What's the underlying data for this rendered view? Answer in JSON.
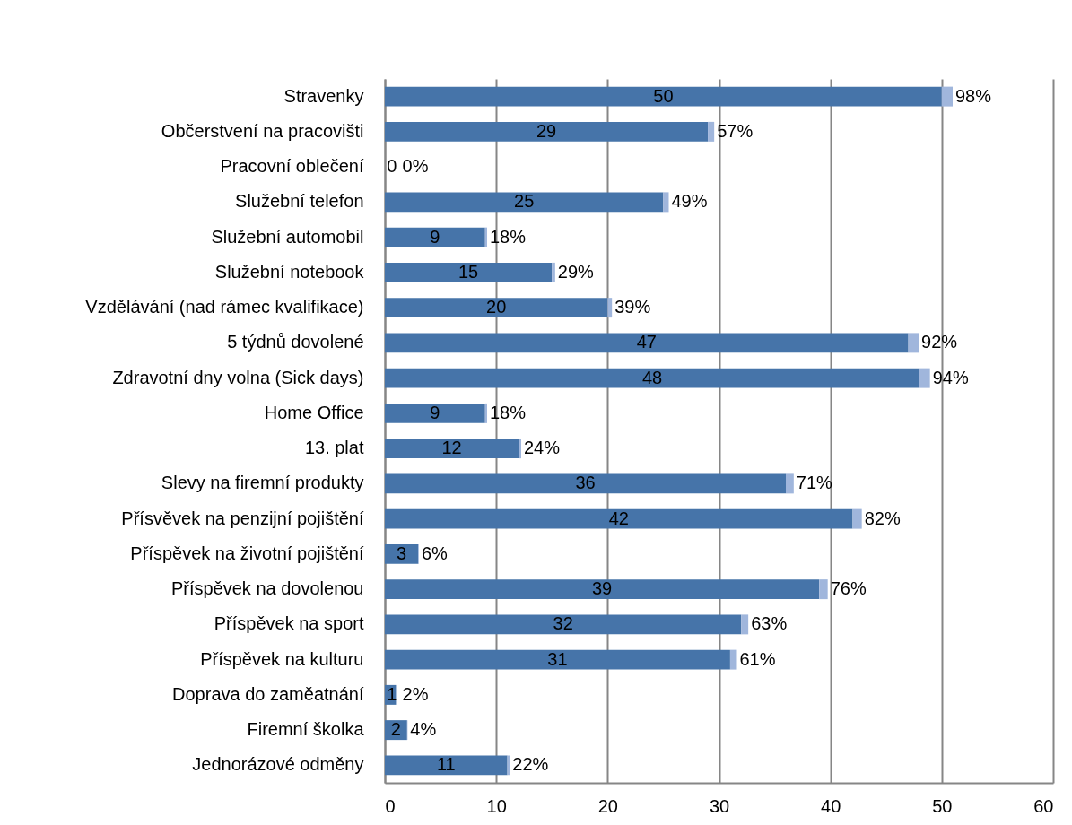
{
  "chart_data": {
    "type": "bar",
    "orientation": "horizontal",
    "stacked": true,
    "categories": [
      "Stravenky",
      "Občerstvení na pracovišti",
      "Pracovní oblečení",
      "Služební telefon",
      "Služební automobil",
      "Služební notebook",
      "Vzdělávání (nad rámec kvalifikace)",
      "5 týdnů dovolené",
      "Zdravotní dny volna (Sick days)",
      "Home Office",
      "13. plat",
      "Slevy na firemní produkty",
      "Přísvěvek na penzijní pojištění",
      "Příspěvek na životní pojištění",
      "Příspěvek na dovolenou",
      "Příspěvek na sport",
      "Příspěvek na kulturu",
      "Doprava do zaměatnání",
      "Firemní školka",
      "Jednorázové odměny"
    ],
    "series": [
      {
        "color": "#4674a9",
        "values": [
          50,
          29,
          0,
          25,
          9,
          15,
          20,
          47,
          48,
          9,
          12,
          36,
          42,
          3,
          39,
          32,
          31,
          1,
          2,
          11
        ],
        "value_labels": [
          "50",
          "29",
          "0",
          "25",
          "9",
          "15",
          "20",
          "47",
          "48",
          "9",
          "12",
          "36",
          "42",
          "3",
          "39",
          "32",
          "31",
          "1",
          "2",
          "11"
        ]
      },
      {
        "color": "#a0b6dc",
        "values": [
          0.98,
          0.57,
          0,
          0.49,
          0.18,
          0.29,
          0.39,
          0.92,
          0.94,
          0.18,
          0.24,
          0.71,
          0.82,
          0.06,
          0.76,
          0.63,
          0.61,
          0.02,
          0.04,
          0.22
        ],
        "value_labels": [
          "98%",
          "57%",
          "0%",
          "49%",
          "18%",
          "29%",
          "39%",
          "92%",
          "94%",
          "18%",
          "24%",
          "71%",
          "82%",
          "6%",
          "76%",
          "63%",
          "61%",
          "2%",
          "4%",
          "22%"
        ]
      }
    ],
    "xlim": [
      0,
      60
    ],
    "xticks": [
      0,
      10,
      20,
      30,
      40,
      50,
      60
    ],
    "grid": "x"
  }
}
